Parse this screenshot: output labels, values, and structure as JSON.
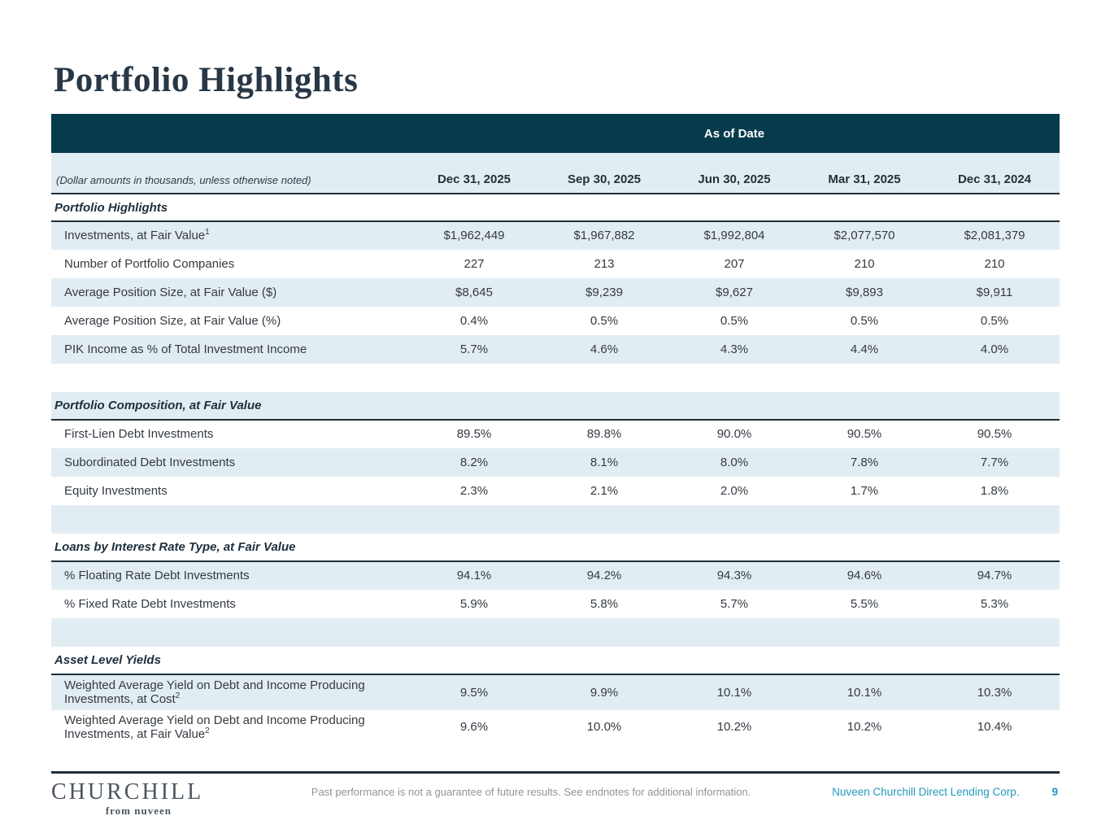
{
  "title": "Portfolio Highlights",
  "table": {
    "banner": "As of Date",
    "note": "(Dollar amounts in thousands, unless otherwise noted)",
    "columns": [
      "Dec 31, 2025",
      "Sep 30, 2025",
      "Jun 30, 2025",
      "Mar 31, 2025",
      "Dec 31, 2024"
    ],
    "rows": [
      {
        "type": "section",
        "label": "Portfolio Highlights"
      },
      {
        "type": "data",
        "label": "Investments, at Fair Value",
        "sup": "1",
        "values": [
          "$1,962,449",
          "$1,967,882",
          "$1,992,804",
          "$2,077,570",
          "$2,081,379"
        ]
      },
      {
        "type": "data",
        "label": "Number of Portfolio Companies",
        "values": [
          "227",
          "213",
          "207",
          "210",
          "210"
        ]
      },
      {
        "type": "data",
        "label": "Average Position Size, at Fair Value ($)",
        "values": [
          "$8,645",
          "$9,239",
          "$9,627",
          "$9,893",
          "$9,911"
        ]
      },
      {
        "type": "data",
        "label": "Average Position Size, at Fair Value (%)",
        "values": [
          "0.4%",
          "0.5%",
          "0.5%",
          "0.5%",
          "0.5%"
        ]
      },
      {
        "type": "data",
        "label": "PIK Income as % of Total Investment Income",
        "values": [
          "5.7%",
          "4.6%",
          "4.3%",
          "4.4%",
          "4.0%"
        ]
      },
      {
        "type": "spacer"
      },
      {
        "type": "section",
        "label": "Portfolio Composition, at Fair Value"
      },
      {
        "type": "data",
        "label": "First-Lien Debt Investments",
        "values": [
          "89.5%",
          "89.8%",
          "90.0%",
          "90.5%",
          "90.5%"
        ]
      },
      {
        "type": "data",
        "label": "Subordinated Debt Investments",
        "values": [
          "8.2%",
          "8.1%",
          "8.0%",
          "7.8%",
          "7.7%"
        ]
      },
      {
        "type": "data",
        "label": "Equity Investments",
        "values": [
          "2.3%",
          "2.1%",
          "2.0%",
          "1.7%",
          "1.8%"
        ]
      },
      {
        "type": "spacer"
      },
      {
        "type": "section",
        "label": "Loans by Interest Rate Type, at Fair Value"
      },
      {
        "type": "data",
        "label": "% Floating Rate Debt Investments",
        "values": [
          "94.1%",
          "94.2%",
          "94.3%",
          "94.6%",
          "94.7%"
        ]
      },
      {
        "type": "data",
        "label": "% Fixed Rate Debt Investments",
        "values": [
          "5.9%",
          "5.8%",
          "5.7%",
          "5.5%",
          "5.3%"
        ]
      },
      {
        "type": "spacer"
      },
      {
        "type": "section",
        "label": "Asset Level Yields"
      },
      {
        "type": "data",
        "label": "Weighted Average Yield on Debt and Income Producing Investments, at Cost",
        "sup": "2",
        "values": [
          "9.5%",
          "9.9%",
          "10.1%",
          "10.1%",
          "10.3%"
        ]
      },
      {
        "type": "data",
        "label": "Weighted Average Yield on Debt and Income Producing Investments, at Fair Value",
        "sup": "2",
        "values": [
          "9.6%",
          "10.0%",
          "10.2%",
          "10.2%",
          "10.4%"
        ]
      }
    ]
  },
  "footer": {
    "logo": "CHURCHILL",
    "logo_tagline": "from nuveen",
    "disclaimer": "Past performance is not a guarantee of future results. See endnotes for additional information.",
    "company": "Nuveen Churchill Direct Lending Corp.",
    "page_number": "9"
  },
  "colors": {
    "banner_bg": "#063b4c",
    "row_shade": "#e2edf3",
    "divider": "#1f3038",
    "accent_teal": "#2399bd",
    "title_text": "#283745",
    "body_text": "#333a42",
    "muted_text": "#909599",
    "logo_text": "#4b5560"
  }
}
